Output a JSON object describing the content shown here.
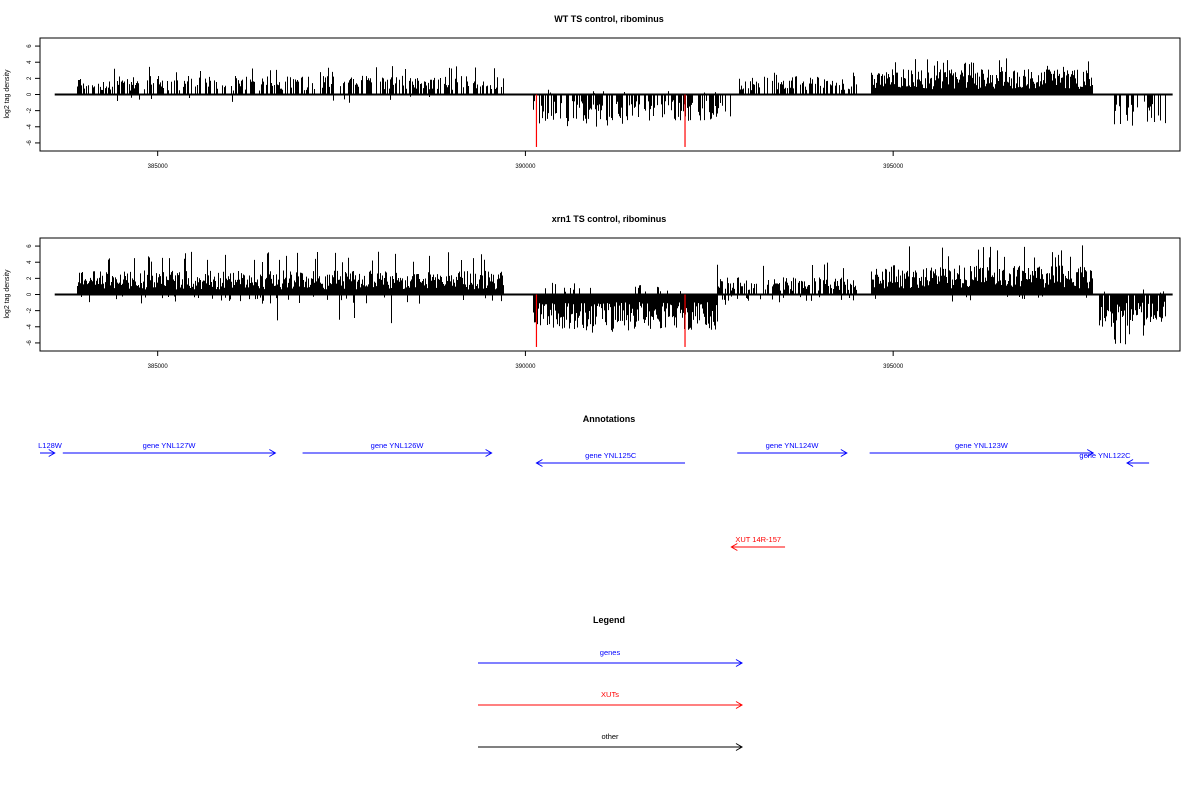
{
  "chart_data": [
    {
      "type": "bar",
      "title": "WT TS control, ribominus",
      "xlabel": "",
      "ylabel": "log2 tag density",
      "xlim": [
        383400,
        398900
      ],
      "ylim": [
        -7,
        7
      ],
      "x_ticks": [
        385000,
        390000,
        395000
      ],
      "x_tick_labels": [
        "385000",
        "390000",
        "395000"
      ],
      "y_ticks": [
        6,
        4,
        2,
        0,
        -2,
        -4,
        -6
      ],
      "y_tick_labels": [
        "6",
        "4",
        "2",
        "0",
        "-2",
        "-4",
        "-6"
      ],
      "baseline": {
        "from": 383600,
        "to": 398800,
        "value": 0
      },
      "highlight_color": "#ff0000",
      "highlights": [
        {
          "x": 390150,
          "value": -6.5
        },
        {
          "x": 392170,
          "value": -6.5
        }
      ],
      "tracks": [
        {
          "from": 383900,
          "to": 389700,
          "sign": 1,
          "density": 0.55,
          "mean": 1.4,
          "max": 3.6,
          "seed": 11
        },
        {
          "from": 383900,
          "to": 389700,
          "sign": -1,
          "density": 0.02,
          "mean": 0.6,
          "max": 1.2,
          "seed": 12
        },
        {
          "from": 390100,
          "to": 392600,
          "sign": -1,
          "density": 0.6,
          "mean": 2.0,
          "max": 4.0,
          "seed": 13
        },
        {
          "from": 390100,
          "to": 392600,
          "sign": 1,
          "density": 0.06,
          "mean": 0.4,
          "max": 0.8,
          "seed": 14
        },
        {
          "from": 392600,
          "to": 392800,
          "sign": -1,
          "density": 0.4,
          "mean": 2.0,
          "max": 3.5,
          "seed": 15
        },
        {
          "from": 392900,
          "to": 394500,
          "sign": 1,
          "density": 0.55,
          "mean": 1.5,
          "max": 2.9,
          "seed": 16
        },
        {
          "from": 394700,
          "to": 397700,
          "sign": 1,
          "density": 1.0,
          "mean": 1.9,
          "max": 4.5,
          "seed": 17
        },
        {
          "from": 398000,
          "to": 398700,
          "sign": -1,
          "density": 0.5,
          "mean": 2.4,
          "max": 5.3,
          "seed": 18
        }
      ]
    },
    {
      "type": "bar",
      "title": "xrn1 TS control, ribominus",
      "xlabel": "",
      "ylabel": "log2 tag density",
      "xlim": [
        383400,
        398900
      ],
      "ylim": [
        -7,
        7
      ],
      "x_ticks": [
        385000,
        390000,
        395000
      ],
      "x_tick_labels": [
        "385000",
        "390000",
        "395000"
      ],
      "y_ticks": [
        6,
        4,
        2,
        0,
        -2,
        -4,
        -6
      ],
      "y_tick_labels": [
        "6",
        "4",
        "2",
        "0",
        "-2",
        "-4",
        "-6"
      ],
      "baseline": {
        "from": 383600,
        "to": 398800,
        "value": 0
      },
      "highlight_color": "#ff0000",
      "highlights": [
        {
          "x": 390150,
          "value": -6.5
        },
        {
          "x": 392170,
          "value": -6.5
        }
      ],
      "tracks": [
        {
          "from": 383900,
          "to": 389700,
          "sign": 1,
          "density": 1.0,
          "mean": 1.8,
          "max": 5.3,
          "seed": 21
        },
        {
          "from": 383900,
          "to": 389700,
          "sign": -1,
          "density": 0.08,
          "mean": 0.7,
          "max": 3.8,
          "seed": 22
        },
        {
          "from": 390100,
          "to": 392600,
          "sign": -1,
          "density": 1.0,
          "mean": 2.7,
          "max": 4.8,
          "seed": 23
        },
        {
          "from": 390100,
          "to": 392600,
          "sign": 1,
          "density": 0.1,
          "mean": 0.6,
          "max": 1.5,
          "seed": 24
        },
        {
          "from": 392600,
          "to": 394500,
          "sign": 1,
          "density": 0.7,
          "mean": 1.3,
          "max": 4.1,
          "seed": 25
        },
        {
          "from": 392600,
          "to": 394500,
          "sign": -1,
          "density": 0.15,
          "mean": 0.6,
          "max": 1.4,
          "seed": 26
        },
        {
          "from": 394700,
          "to": 397700,
          "sign": 1,
          "density": 1.0,
          "mean": 2.2,
          "max": 6.1,
          "seed": 27
        },
        {
          "from": 394700,
          "to": 397700,
          "sign": -1,
          "density": 0.05,
          "mean": 0.5,
          "max": 1.0,
          "seed": 28
        },
        {
          "from": 397800,
          "to": 398700,
          "sign": -1,
          "density": 0.9,
          "mean": 2.5,
          "max": 6.2,
          "seed": 29
        },
        {
          "from": 397800,
          "to": 398700,
          "sign": 1,
          "density": 0.1,
          "mean": 0.5,
          "max": 1.4,
          "seed": 30
        }
      ]
    }
  ],
  "annotations": {
    "title": "Annotations",
    "features": [
      {
        "label": "L128W",
        "start": 383400,
        "end": 383600,
        "strand": "+",
        "type": "gene",
        "row": 0
      },
      {
        "label": "gene YNL127W",
        "start": 383710,
        "end": 386600,
        "strand": "+",
        "type": "gene",
        "row": 0
      },
      {
        "label": "gene YNL126W",
        "start": 386970,
        "end": 389540,
        "strand": "+",
        "type": "gene",
        "row": 0
      },
      {
        "label": "gene YNL125C",
        "start": 390150,
        "end": 392170,
        "strand": "-",
        "type": "gene",
        "row": 1
      },
      {
        "label": "gene YNL124W",
        "start": 392880,
        "end": 394370,
        "strand": "+",
        "type": "gene",
        "row": 0
      },
      {
        "label": "gene YNL123W",
        "start": 394680,
        "end": 397720,
        "strand": "+",
        "type": "gene",
        "row": 0
      },
      {
        "label": "gene YNL122C",
        "start": 398180,
        "end": 398480,
        "strand": "-",
        "type": "gene",
        "row": 1
      },
      {
        "label": "XUT 14R-157",
        "start": 392800,
        "end": 393530,
        "strand": "-",
        "type": "xut",
        "row": 2
      }
    ]
  },
  "legend": {
    "title": "Legend",
    "items": [
      {
        "label": "genes",
        "color": "#0000ff"
      },
      {
        "label": "XUTs",
        "color": "#ff0000"
      },
      {
        "label": "other",
        "color": "#000000"
      }
    ]
  },
  "colors": {
    "gene": "#0000ff",
    "xut": "#ff0000",
    "other": "#000000"
  }
}
